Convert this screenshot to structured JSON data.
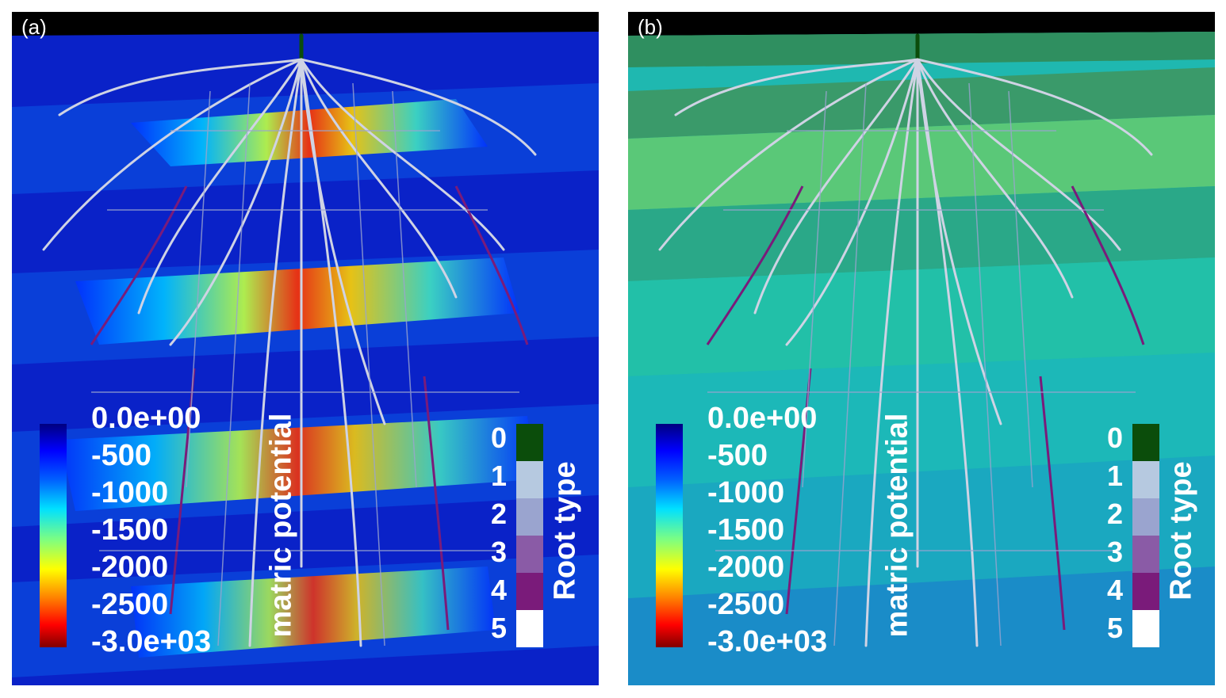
{
  "panels": [
    {
      "label": "(a)",
      "colorbar": {
        "title": "matric potential",
        "ticks": [
          "0.0e+00",
          "-500",
          "-1000",
          "-1500",
          "-2000",
          "-2500",
          "-3.0e+03"
        ]
      },
      "root_legend": {
        "title": "Root type",
        "ticks": [
          "0",
          "1",
          "2",
          "3",
          "4",
          "5"
        ]
      }
    },
    {
      "label": "(b)",
      "colorbar": {
        "title": "matric potential",
        "ticks": [
          "0.0e+00",
          "-500",
          "-1000",
          "-1500",
          "-2000",
          "-2500",
          "-3.0e+03"
        ]
      },
      "root_legend": {
        "title": "Root type",
        "ticks": [
          "0",
          "1",
          "2",
          "3",
          "4",
          "5"
        ]
      }
    }
  ],
  "colors": {
    "root_type": [
      "#0b4d0b",
      "#b6c9e0",
      "#9aa4cf",
      "#8a5ba6",
      "#7a1b7a",
      "#ffffff"
    ],
    "panel_a_background": "#0a22c8",
    "panel_b_background": "#1fb8b0"
  }
}
